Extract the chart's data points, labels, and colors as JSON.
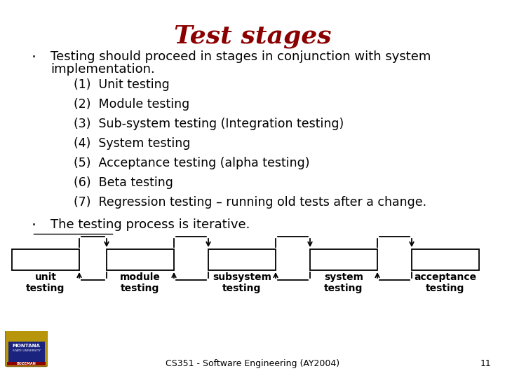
{
  "title": "Test stages",
  "title_color": "#8B0000",
  "title_fontsize": 26,
  "bullet1_line1": "Testing should proceed in stages in conjunction with system",
  "bullet1_line2": "implementation.",
  "subitems": [
    "(1)  Unit testing",
    "(2)  Module testing",
    "(3)  Sub-system testing (Integration testing)",
    "(4)  System testing",
    "(5)  Acceptance testing (alpha testing)",
    "(6)  Beta testing",
    "(7)  Regression testing – running old tests after a change."
  ],
  "bullet2": "The testing process is iterative.",
  "diagram_labels": [
    "unit\ntesting",
    "module\ntesting",
    "subsystem\ntesting",
    "system\ntesting",
    "acceptance\ntesting"
  ],
  "footer": "CS351 - Software Engineering (AY2004)",
  "page_number": "11",
  "bg_color": "#FFFFFF",
  "text_color": "#000000",
  "diagram_box_color": "#000000",
  "diagram_arrow_color": "#000000",
  "bullet_fontsize": 13,
  "subitem_fontsize": 12.5,
  "diagram_label_fontsize": 10,
  "footer_fontsize": 9
}
